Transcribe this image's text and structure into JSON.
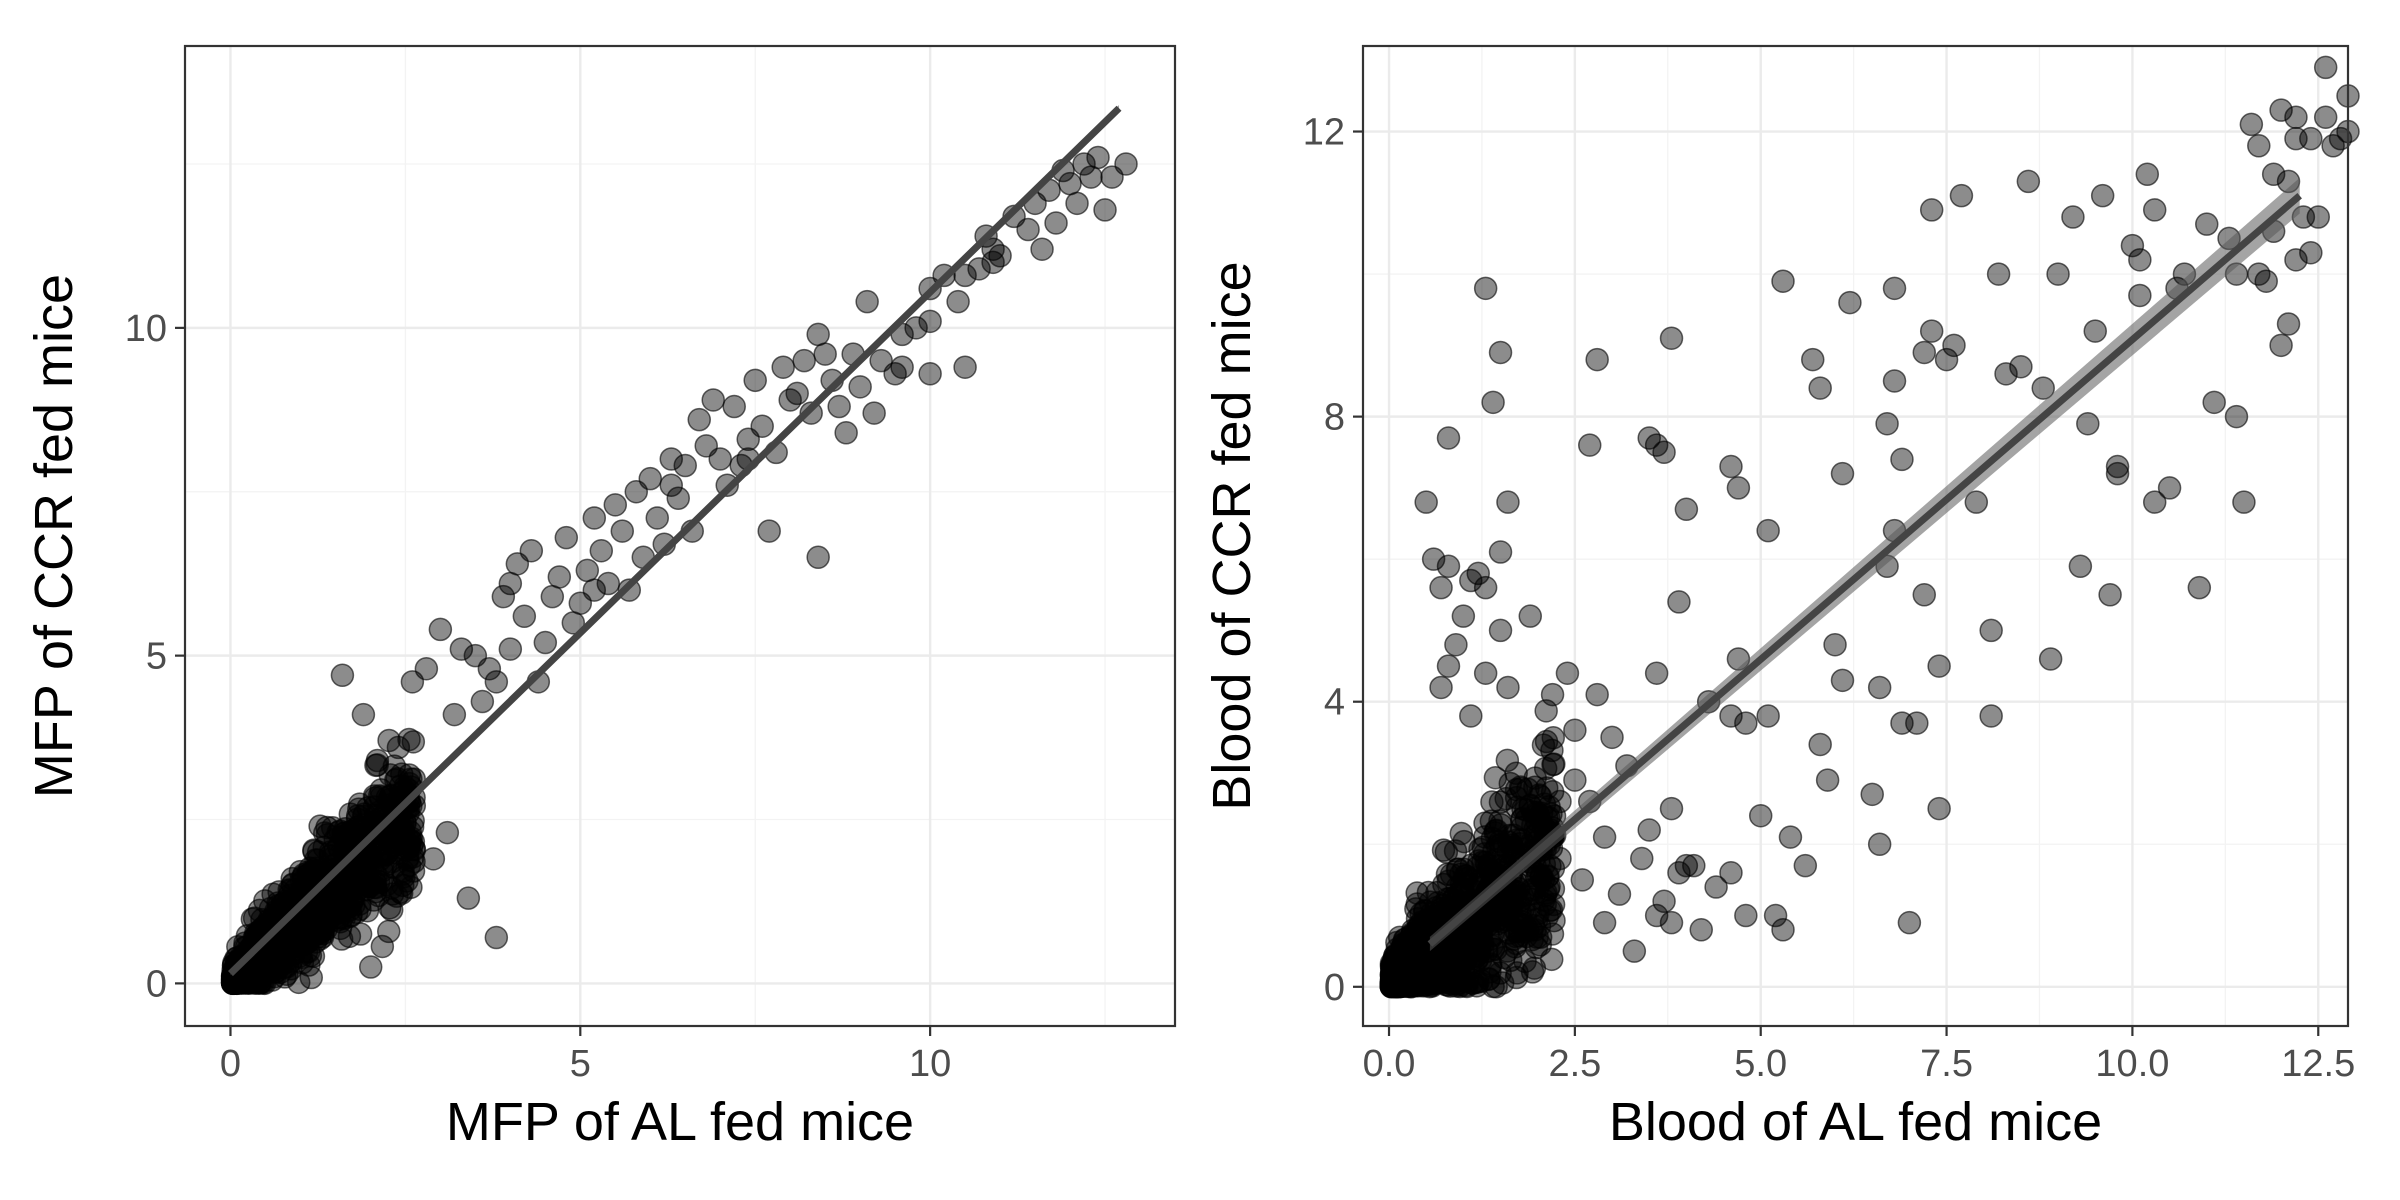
{
  "chart_data": [
    {
      "type": "scatter",
      "title": "",
      "xlabel": "MFP of AL fed mice",
      "ylabel": "MFP of CCR fed mice",
      "xlim": [
        -0.65,
        13.5
      ],
      "ylim": [
        -0.65,
        14.3
      ],
      "x_ticks": [
        0,
        5,
        10
      ],
      "y_ticks": [
        0,
        5,
        10
      ],
      "grid": true,
      "point_color": "#000000",
      "point_alpha": 0.45,
      "fit_line": {
        "method": "linear",
        "x": [
          0,
          12.7
        ],
        "y": [
          0.15,
          13.35
        ],
        "se_band": 0.05,
        "color": "#444444"
      },
      "cluster": {
        "description_free": true,
        "n": 1100,
        "xmax": 2.6,
        "slope": 1.0,
        "spread": 0.35
      },
      "points": [
        [
          1.6,
          4.7
        ],
        [
          1.9,
          4.1
        ],
        [
          2.1,
          3.4
        ],
        [
          2.4,
          3.6
        ],
        [
          2.6,
          4.6
        ],
        [
          2.8,
          4.8
        ],
        [
          3.0,
          5.4
        ],
        [
          3.2,
          4.1
        ],
        [
          3.3,
          5.1
        ],
        [
          3.5,
          5.0
        ],
        [
          3.6,
          4.3
        ],
        [
          3.8,
          4.6
        ],
        [
          3.9,
          5.9
        ],
        [
          4.0,
          6.1
        ],
        [
          4.1,
          6.4
        ],
        [
          4.2,
          5.6
        ],
        [
          4.3,
          6.6
        ],
        [
          4.4,
          4.6
        ],
        [
          4.5,
          5.2
        ],
        [
          4.6,
          5.9
        ],
        [
          4.7,
          6.2
        ],
        [
          4.8,
          6.8
        ],
        [
          4.9,
          5.5
        ],
        [
          5.0,
          5.8
        ],
        [
          5.1,
          6.3
        ],
        [
          5.2,
          7.1
        ],
        [
          5.3,
          6.6
        ],
        [
          5.4,
          6.1
        ],
        [
          5.5,
          7.3
        ],
        [
          5.6,
          6.9
        ],
        [
          5.7,
          6.0
        ],
        [
          5.8,
          7.5
        ],
        [
          5.9,
          6.5
        ],
        [
          6.0,
          7.7
        ],
        [
          6.1,
          7.1
        ],
        [
          6.2,
          6.7
        ],
        [
          6.3,
          8.0
        ],
        [
          6.4,
          7.4
        ],
        [
          6.5,
          7.9
        ],
        [
          6.6,
          6.9
        ],
        [
          6.7,
          8.6
        ],
        [
          6.8,
          8.2
        ],
        [
          6.9,
          8.9
        ],
        [
          7.0,
          8.0
        ],
        [
          7.1,
          7.6
        ],
        [
          7.2,
          8.8
        ],
        [
          7.3,
          7.9
        ],
        [
          7.4,
          8.3
        ],
        [
          7.5,
          9.2
        ],
        [
          7.6,
          8.5
        ],
        [
          7.7,
          6.9
        ],
        [
          7.8,
          8.1
        ],
        [
          7.9,
          9.4
        ],
        [
          8.0,
          8.9
        ],
        [
          8.1,
          9.0
        ],
        [
          8.2,
          9.5
        ],
        [
          8.3,
          8.7
        ],
        [
          8.4,
          9.9
        ],
        [
          8.4,
          6.5
        ],
        [
          8.5,
          9.6
        ],
        [
          8.6,
          9.2
        ],
        [
          8.7,
          8.8
        ],
        [
          8.8,
          8.4
        ],
        [
          8.9,
          9.6
        ],
        [
          9.0,
          9.1
        ],
        [
          9.1,
          10.4
        ],
        [
          9.2,
          8.7
        ],
        [
          9.3,
          9.5
        ],
        [
          9.5,
          9.3
        ],
        [
          9.6,
          9.4
        ],
        [
          9.8,
          10.0
        ],
        [
          10.0,
          10.1
        ],
        [
          10.0,
          9.3
        ],
        [
          10.0,
          10.6
        ],
        [
          10.2,
          10.8
        ],
        [
          10.4,
          10.4
        ],
        [
          10.5,
          9.4
        ],
        [
          10.5,
          10.8
        ],
        [
          10.7,
          10.9
        ],
        [
          10.8,
          11.4
        ],
        [
          10.9,
          11.2
        ],
        [
          11.0,
          11.1
        ],
        [
          11.2,
          11.7
        ],
        [
          11.4,
          11.5
        ],
        [
          11.5,
          11.9
        ],
        [
          11.6,
          11.2
        ],
        [
          11.7,
          12.1
        ],
        [
          11.8,
          11.6
        ],
        [
          12.0,
          12.2
        ],
        [
          12.1,
          11.9
        ],
        [
          12.2,
          12.5
        ],
        [
          12.3,
          12.3
        ],
        [
          12.4,
          12.6
        ],
        [
          12.5,
          11.8
        ],
        [
          12.6,
          12.3
        ],
        [
          12.8,
          12.5
        ],
        [
          3.8,
          0.7
        ],
        [
          3.4,
          1.3
        ],
        [
          2.9,
          1.9
        ],
        [
          3.1,
          2.3
        ],
        [
          10.9,
          11.0
        ],
        [
          11.9,
          12.4
        ],
        [
          9.6,
          9.9
        ],
        [
          7.4,
          8.0
        ],
        [
          6.3,
          7.6
        ],
        [
          5.2,
          6.0
        ],
        [
          4.0,
          5.1
        ],
        [
          3.7,
          4.8
        ]
      ]
    },
    {
      "type": "scatter",
      "title": "",
      "xlabel": "Blood of AL fed mice",
      "ylabel": "Blood of CCR fed mice",
      "xlim": [
        -0.35,
        12.9
      ],
      "ylim": [
        -0.55,
        13.2
      ],
      "x_ticks": [
        0.0,
        2.5,
        5.0,
        7.5,
        10.0,
        12.5
      ],
      "x_tick_labels": [
        "0.0",
        "2.5",
        "5.0",
        "7.5",
        "10.0",
        "12.5"
      ],
      "y_ticks": [
        0,
        4,
        8,
        12
      ],
      "grid": true,
      "point_color": "#000000",
      "point_alpha": 0.45,
      "fit_line": {
        "method": "linear",
        "x": [
          0.55,
          12.25
        ],
        "y": [
          0.6,
          11.1
        ],
        "se_band": 0.25,
        "color": "#444444"
      },
      "cluster": {
        "description_free": true,
        "n": 900,
        "xmax": 2.2,
        "slope": 0.9,
        "spread": 0.55
      },
      "points": [
        [
          0.5,
          6.8
        ],
        [
          0.6,
          6.0
        ],
        [
          0.7,
          5.6
        ],
        [
          0.8,
          5.9
        ],
        [
          0.9,
          4.8
        ],
        [
          1.0,
          5.2
        ],
        [
          0.7,
          4.2
        ],
        [
          0.8,
          4.5
        ],
        [
          0.8,
          7.7
        ],
        [
          1.1,
          5.7
        ],
        [
          1.3,
          9.8
        ],
        [
          1.4,
          8.2
        ],
        [
          1.5,
          8.9
        ],
        [
          1.5,
          6.1
        ],
        [
          1.6,
          6.8
        ],
        [
          1.2,
          5.8
        ],
        [
          1.3,
          5.6
        ],
        [
          1.5,
          5.0
        ],
        [
          1.3,
          4.4
        ],
        [
          1.1,
          3.8
        ],
        [
          1.9,
          5.2
        ],
        [
          1.6,
          4.2
        ],
        [
          2.2,
          4.1
        ],
        [
          2.4,
          4.4
        ],
        [
          2.5,
          3.6
        ],
        [
          2.7,
          7.6
        ],
        [
          2.8,
          8.8
        ],
        [
          2.8,
          4.1
        ],
        [
          3.0,
          3.5
        ],
        [
          3.2,
          3.1
        ],
        [
          3.5,
          7.7
        ],
        [
          3.6,
          7.6
        ],
        [
          3.7,
          7.5
        ],
        [
          3.8,
          9.1
        ],
        [
          3.9,
          5.4
        ],
        [
          4.0,
          6.7
        ],
        [
          3.6,
          4.4
        ],
        [
          3.8,
          2.5
        ],
        [
          3.5,
          2.2
        ],
        [
          4.3,
          4.0
        ],
        [
          4.6,
          7.3
        ],
        [
          4.7,
          7.0
        ],
        [
          4.7,
          4.6
        ],
        [
          4.6,
          3.8
        ],
        [
          4.8,
          3.7
        ],
        [
          5.1,
          6.4
        ],
        [
          5.1,
          3.8
        ],
        [
          5.3,
          9.9
        ],
        [
          5.4,
          2.1
        ],
        [
          5.7,
          8.8
        ],
        [
          5.8,
          8.4
        ],
        [
          5.8,
          3.4
        ],
        [
          5.9,
          2.9
        ],
        [
          6.0,
          4.8
        ],
        [
          6.1,
          4.3
        ],
        [
          6.1,
          7.2
        ],
        [
          6.2,
          9.6
        ],
        [
          6.5,
          2.7
        ],
        [
          6.6,
          2.0
        ],
        [
          6.6,
          4.2
        ],
        [
          6.7,
          7.9
        ],
        [
          6.8,
          9.8
        ],
        [
          6.8,
          8.5
        ],
        [
          6.8,
          6.4
        ],
        [
          6.7,
          5.9
        ],
        [
          6.9,
          3.7
        ],
        [
          6.9,
          7.4
        ],
        [
          7.0,
          0.9
        ],
        [
          7.2,
          8.9
        ],
        [
          7.3,
          9.2
        ],
        [
          7.2,
          5.5
        ],
        [
          7.1,
          3.7
        ],
        [
          7.3,
          10.9
        ],
        [
          7.4,
          4.5
        ],
        [
          7.4,
          2.5
        ],
        [
          7.5,
          8.8
        ],
        [
          7.6,
          9.0
        ],
        [
          7.7,
          11.1
        ],
        [
          7.9,
          6.8
        ],
        [
          8.1,
          5.0
        ],
        [
          8.1,
          3.8
        ],
        [
          8.2,
          10.0
        ],
        [
          8.3,
          8.6
        ],
        [
          8.5,
          8.7
        ],
        [
          8.6,
          11.3
        ],
        [
          8.8,
          8.4
        ],
        [
          8.9,
          4.6
        ],
        [
          9.0,
          10.0
        ],
        [
          9.2,
          10.8
        ],
        [
          9.3,
          5.9
        ],
        [
          9.4,
          7.9
        ],
        [
          9.5,
          9.2
        ],
        [
          9.6,
          11.1
        ],
        [
          9.7,
          5.5
        ],
        [
          9.8,
          7.3
        ],
        [
          9.8,
          7.2
        ],
        [
          10.0,
          10.4
        ],
        [
          10.1,
          10.2
        ],
        [
          10.1,
          9.7
        ],
        [
          10.2,
          11.4
        ],
        [
          10.3,
          6.8
        ],
        [
          10.3,
          10.9
        ],
        [
          10.5,
          7.0
        ],
        [
          10.6,
          9.8
        ],
        [
          10.7,
          10.0
        ],
        [
          10.9,
          5.6
        ],
        [
          11.0,
          10.7
        ],
        [
          11.1,
          8.2
        ],
        [
          11.3,
          10.5
        ],
        [
          11.4,
          8.0
        ],
        [
          11.5,
          6.8
        ],
        [
          11.4,
          10.0
        ],
        [
          11.6,
          12.1
        ],
        [
          11.7,
          11.8
        ],
        [
          11.7,
          10.0
        ],
        [
          11.8,
          9.9
        ],
        [
          11.9,
          10.6
        ],
        [
          12.1,
          11.3
        ],
        [
          12.2,
          11.9
        ],
        [
          12.2,
          12.2
        ],
        [
          12.1,
          9.3
        ],
        [
          12.0,
          9.0
        ],
        [
          12.3,
          10.8
        ],
        [
          12.4,
          10.3
        ],
        [
          12.5,
          10.8
        ],
        [
          12.6,
          12.2
        ],
        [
          12.6,
          12.9
        ],
        [
          12.8,
          11.9
        ],
        [
          12.9,
          12.5
        ],
        [
          12.9,
          12.0
        ],
        [
          12.7,
          11.8
        ],
        [
          12.4,
          11.9
        ],
        [
          12.0,
          12.3
        ],
        [
          12.2,
          10.2
        ],
        [
          11.9,
          11.4
        ],
        [
          2.1,
          2.2
        ],
        [
          2.3,
          1.8
        ],
        [
          2.6,
          1.5
        ],
        [
          2.9,
          2.1
        ],
        [
          3.1,
          1.3
        ],
        [
          3.3,
          0.5
        ],
        [
          3.6,
          1.0
        ],
        [
          3.8,
          0.9
        ],
        [
          4.0,
          1.7
        ],
        [
          4.2,
          0.8
        ],
        [
          4.4,
          1.4
        ],
        [
          4.6,
          1.6
        ],
        [
          5.0,
          2.4
        ],
        [
          5.2,
          1.0
        ],
        [
          5.3,
          0.8
        ],
        [
          5.6,
          1.7
        ],
        [
          4.1,
          1.7
        ],
        [
          3.7,
          1.2
        ],
        [
          2.9,
          0.9
        ],
        [
          2.7,
          2.6
        ],
        [
          2.5,
          2.9
        ],
        [
          2.3,
          2.6
        ],
        [
          3.4,
          1.8
        ],
        [
          4.8,
          1.0
        ],
        [
          3.9,
          1.6
        ]
      ]
    }
  ]
}
